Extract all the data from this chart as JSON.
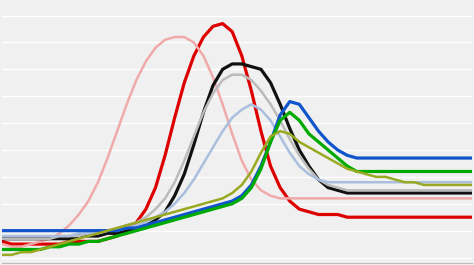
{
  "background_color": "#f0f0f0",
  "grid_color": "#ffffff",
  "n_points": 50,
  "series": [
    {
      "name": "red",
      "color": "#dd0000",
      "lw": 2.3,
      "y": [
        0.06,
        0.05,
        0.05,
        0.05,
        0.05,
        0.05,
        0.05,
        0.06,
        0.06,
        0.06,
        0.06,
        0.07,
        0.08,
        0.1,
        0.13,
        0.18,
        0.26,
        0.38,
        0.52,
        0.65,
        0.75,
        0.82,
        0.86,
        0.87,
        0.84,
        0.75,
        0.62,
        0.47,
        0.34,
        0.26,
        0.21,
        0.18,
        0.17,
        0.16,
        0.16,
        0.16,
        0.15,
        0.15,
        0.15,
        0.15,
        0.15,
        0.15,
        0.15,
        0.15,
        0.15,
        0.15,
        0.15,
        0.15,
        0.15,
        0.15
      ]
    },
    {
      "name": "pink",
      "color": "#f0aaaa",
      "lw": 1.8,
      "y": [
        0.05,
        0.04,
        0.04,
        0.05,
        0.06,
        0.07,
        0.09,
        0.12,
        0.16,
        0.21,
        0.28,
        0.37,
        0.47,
        0.57,
        0.66,
        0.73,
        0.78,
        0.81,
        0.82,
        0.82,
        0.8,
        0.75,
        0.67,
        0.57,
        0.46,
        0.36,
        0.29,
        0.25,
        0.23,
        0.22,
        0.22,
        0.22,
        0.22,
        0.22,
        0.22,
        0.22,
        0.22,
        0.22,
        0.22,
        0.22,
        0.22,
        0.22,
        0.22,
        0.22,
        0.22,
        0.22,
        0.22,
        0.22,
        0.22,
        0.22
      ]
    },
    {
      "name": "black",
      "color": "#111111",
      "lw": 2.3,
      "y": [
        0.07,
        0.07,
        0.07,
        0.07,
        0.07,
        0.07,
        0.07,
        0.07,
        0.08,
        0.08,
        0.08,
        0.09,
        0.09,
        0.1,
        0.11,
        0.12,
        0.14,
        0.17,
        0.23,
        0.31,
        0.42,
        0.54,
        0.64,
        0.7,
        0.72,
        0.72,
        0.71,
        0.7,
        0.65,
        0.57,
        0.48,
        0.4,
        0.34,
        0.29,
        0.26,
        0.25,
        0.24,
        0.24,
        0.24,
        0.24,
        0.24,
        0.24,
        0.24,
        0.24,
        0.24,
        0.24,
        0.24,
        0.24,
        0.24,
        0.24
      ]
    },
    {
      "name": "gray",
      "color": "#bbbbbb",
      "lw": 1.8,
      "y": [
        0.07,
        0.07,
        0.07,
        0.07,
        0.07,
        0.07,
        0.08,
        0.08,
        0.08,
        0.09,
        0.09,
        0.1,
        0.11,
        0.12,
        0.13,
        0.15,
        0.18,
        0.22,
        0.28,
        0.36,
        0.45,
        0.54,
        0.61,
        0.66,
        0.68,
        0.68,
        0.66,
        0.62,
        0.57,
        0.51,
        0.44,
        0.38,
        0.33,
        0.29,
        0.27,
        0.26,
        0.25,
        0.25,
        0.25,
        0.25,
        0.25,
        0.25,
        0.25,
        0.25,
        0.25,
        0.25,
        0.25,
        0.25,
        0.25,
        0.25
      ]
    },
    {
      "name": "light_blue",
      "color": "#aabedd",
      "lw": 1.8,
      "y": [
        0.08,
        0.08,
        0.08,
        0.08,
        0.08,
        0.08,
        0.08,
        0.08,
        0.09,
        0.09,
        0.09,
        0.1,
        0.1,
        0.11,
        0.12,
        0.13,
        0.15,
        0.17,
        0.2,
        0.24,
        0.29,
        0.35,
        0.41,
        0.47,
        0.52,
        0.55,
        0.57,
        0.55,
        0.51,
        0.45,
        0.39,
        0.34,
        0.31,
        0.29,
        0.28,
        0.28,
        0.28,
        0.28,
        0.28,
        0.28,
        0.28,
        0.28,
        0.28,
        0.28,
        0.28,
        0.28,
        0.28,
        0.28,
        0.28,
        0.28
      ]
    },
    {
      "name": "blue",
      "color": "#1155cc",
      "lw": 2.3,
      "y": [
        0.1,
        0.1,
        0.1,
        0.1,
        0.1,
        0.1,
        0.1,
        0.1,
        0.1,
        0.1,
        0.1,
        0.1,
        0.1,
        0.11,
        0.11,
        0.12,
        0.13,
        0.14,
        0.15,
        0.16,
        0.17,
        0.18,
        0.19,
        0.2,
        0.21,
        0.23,
        0.27,
        0.34,
        0.43,
        0.53,
        0.58,
        0.57,
        0.52,
        0.47,
        0.43,
        0.4,
        0.38,
        0.37,
        0.37,
        0.37,
        0.37,
        0.37,
        0.37,
        0.37,
        0.37,
        0.37,
        0.37,
        0.37,
        0.37,
        0.37
      ]
    },
    {
      "name": "green",
      "color": "#00aa00",
      "lw": 2.3,
      "y": [
        0.03,
        0.03,
        0.03,
        0.03,
        0.03,
        0.04,
        0.04,
        0.05,
        0.05,
        0.06,
        0.06,
        0.07,
        0.08,
        0.09,
        0.1,
        0.11,
        0.12,
        0.13,
        0.14,
        0.15,
        0.16,
        0.17,
        0.18,
        0.19,
        0.2,
        0.22,
        0.26,
        0.33,
        0.43,
        0.51,
        0.54,
        0.51,
        0.46,
        0.43,
        0.4,
        0.37,
        0.34,
        0.32,
        0.32,
        0.32,
        0.32,
        0.32,
        0.32,
        0.32,
        0.32,
        0.32,
        0.32,
        0.32,
        0.32,
        0.32
      ]
    },
    {
      "name": "olive",
      "color": "#99aa22",
      "lw": 1.8,
      "y": [
        0.01,
        0.01,
        0.02,
        0.02,
        0.03,
        0.04,
        0.05,
        0.06,
        0.07,
        0.08,
        0.09,
        0.1,
        0.11,
        0.12,
        0.13,
        0.14,
        0.15,
        0.16,
        0.17,
        0.18,
        0.19,
        0.2,
        0.21,
        0.22,
        0.24,
        0.27,
        0.32,
        0.39,
        0.45,
        0.47,
        0.46,
        0.43,
        0.41,
        0.39,
        0.37,
        0.35,
        0.33,
        0.32,
        0.31,
        0.3,
        0.3,
        0.29,
        0.28,
        0.28,
        0.27,
        0.27,
        0.27,
        0.27,
        0.27,
        0.27
      ]
    }
  ],
  "ylim_min": -0.02,
  "ylim_max": 0.95,
  "xlim_min": 0,
  "xlim_max": 49,
  "grid_major_interval": 0.1,
  "n_grid_lines": 10
}
